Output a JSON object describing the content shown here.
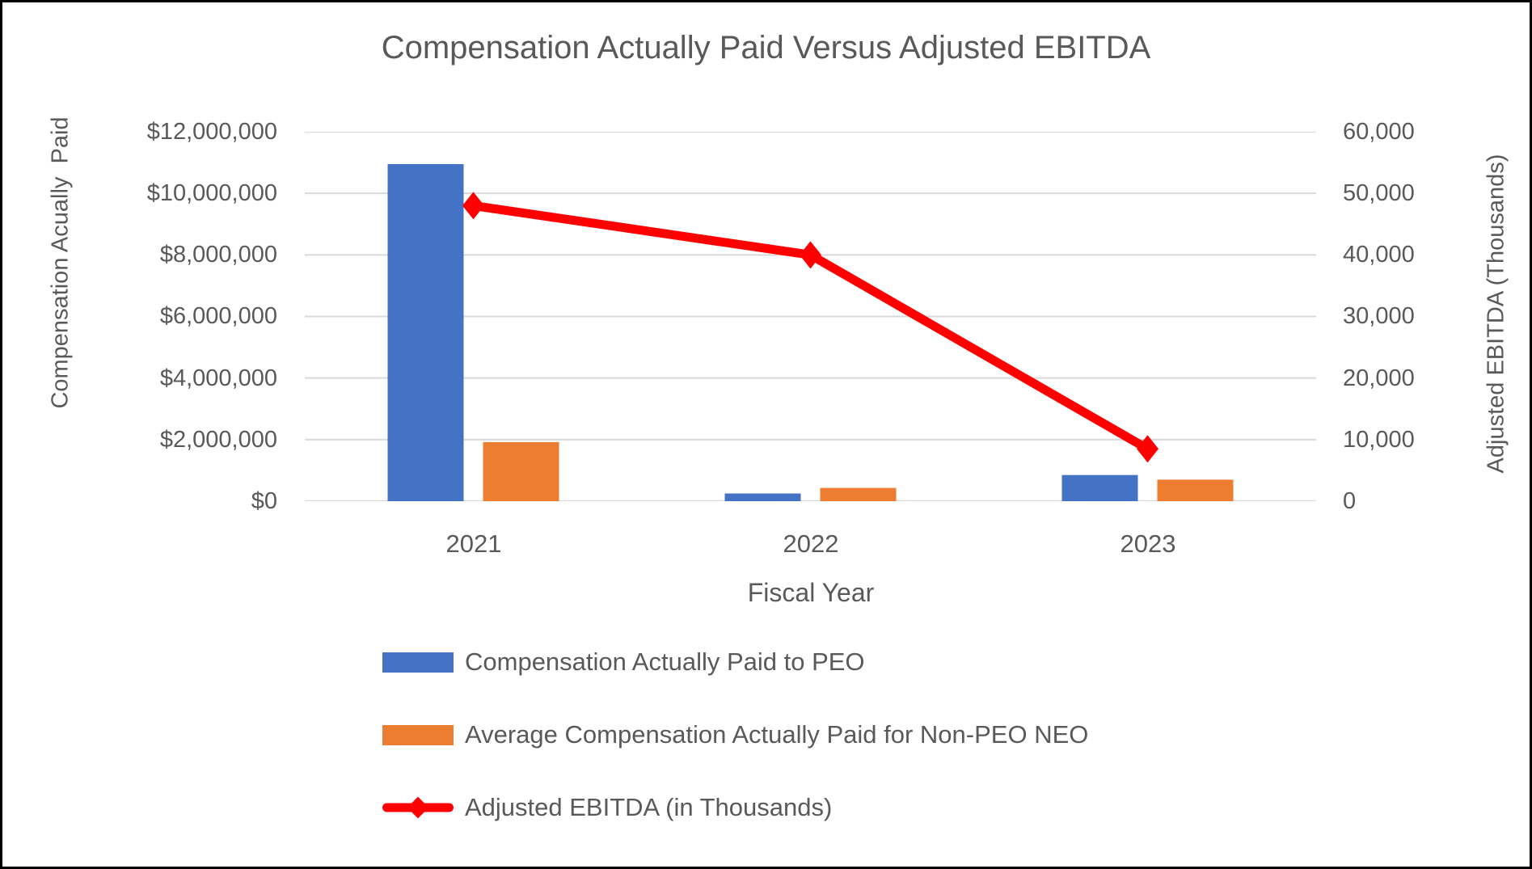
{
  "title": "Compensation Actually Paid Versus Adjusted EBITDA",
  "colors": {
    "bar_blue": "#4472C4",
    "bar_orange": "#ED7D31",
    "line_red": "#FF0000",
    "gridline": "#D9D9D9",
    "text": "#595959",
    "border": "#000000"
  },
  "chart_data": {
    "type": "bar",
    "subtype": "combo-bar-line-dual-axis",
    "categories": [
      "2021",
      "2022",
      "2023"
    ],
    "series": [
      {
        "name": "Compensation Actually Paid to PEO",
        "type": "bar",
        "axis": "left",
        "color": "#4472C4",
        "values": [
          10950000,
          250000,
          850000
        ]
      },
      {
        "name": "Average Compensation Actually Paid for Non-PEO NEO",
        "type": "bar",
        "axis": "left",
        "color": "#ED7D31",
        "values": [
          1920000,
          430000,
          700000
        ]
      },
      {
        "name": "Adjusted EBITDA (in Thousands)",
        "type": "line",
        "axis": "right",
        "color": "#FF0000",
        "marker": "diamond",
        "values": [
          48000,
          40000,
          8500
        ]
      }
    ],
    "title": "Compensation Actually Paid Versus Adjusted EBITDA",
    "xlabel": "Fiscal Year",
    "grid": true,
    "legend_position": "bottom-left",
    "left_axis": {
      "title": "Compensation Acually  Paid",
      "min": 0,
      "max": 12000000,
      "step": 2000000,
      "tick_labels": [
        "$0",
        "$2,000,000",
        "$4,000,000",
        "$6,000,000",
        "$8,000,000",
        "$10,000,000",
        "$12,000,000"
      ]
    },
    "right_axis": {
      "title": "Adjusted EBITDA (Thousands)",
      "min": 0,
      "max": 60000,
      "step": 10000,
      "tick_labels": [
        "0",
        "10,000",
        "20,000",
        "30,000",
        "40,000",
        "50,000",
        "60,000"
      ]
    }
  }
}
